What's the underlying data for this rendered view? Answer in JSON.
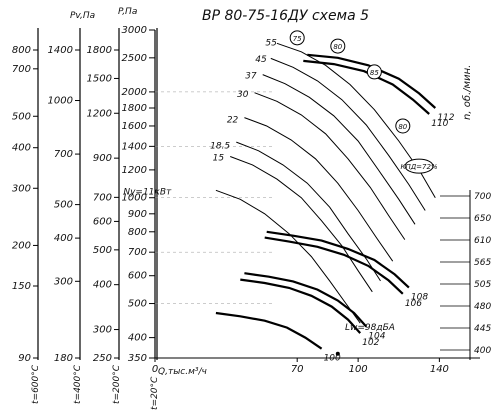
{
  "chart_data": {
    "type": "line",
    "title": "ВР 80-75-16ДУ   схема 5",
    "ylabel_right": "n, об./мин.",
    "xlabel": "Q,тыс.м³/ч",
    "x_ticks": [
      0,
      70,
      100,
      140
    ],
    "xlim": [
      0,
      160
    ],
    "p_axis": {
      "label": "P,Па",
      "scale": "log",
      "range": [
        350,
        3000
      ],
      "ticks": [
        350,
        400,
        500,
        600,
        700,
        800,
        900,
        1000,
        1200,
        1400,
        1600,
        1800,
        2000,
        2500,
        3000
      ]
    },
    "temperature_axes": [
      {
        "label": "t=600°C",
        "ticks": [
          90,
          150,
          200,
          300,
          400,
          500,
          700,
          800
        ]
      },
      {
        "label": "t=400°C",
        "ticks": [
          180,
          300,
          400,
          500,
          700,
          1000,
          1400
        ]
      },
      {
        "label": "t=200°C",
        "ticks": [
          250,
          300,
          400,
          500,
          600,
          700,
          900,
          1200,
          1500,
          1800
        ]
      },
      {
        "label": "t=20°C",
        "ticks": []
      }
    ],
    "pv_axis": {
      "label": "Pv,Па"
    },
    "right_n_ticks": [
      400,
      445,
      480,
      505,
      565,
      610,
      650,
      700
    ],
    "rpm_curves": [
      {
        "rpm": 112,
        "q": [
          75,
          90,
          105,
          120,
          130,
          138
        ],
        "p": [
          2550,
          2500,
          2380,
          2180,
          1980,
          1800
        ]
      },
      {
        "rpm": 110,
        "q": [
          73,
          88,
          103,
          117,
          127,
          135
        ],
        "p": [
          2450,
          2400,
          2290,
          2100,
          1900,
          1730
        ]
      },
      {
        "rpm": 108,
        "q": [
          55,
          68,
          82,
          95,
          108,
          118,
          125
        ],
        "p": [
          800,
          780,
          755,
          715,
          665,
          605,
          555
        ]
      },
      {
        "rpm": 106,
        "q": [
          54,
          66,
          80,
          93,
          105,
          115,
          122
        ],
        "p": [
          770,
          750,
          725,
          688,
          640,
          582,
          533
        ]
      },
      {
        "rpm": 104,
        "q": [
          44,
          56,
          68,
          80,
          90,
          98,
          104
        ],
        "p": [
          610,
          596,
          578,
          548,
          510,
          470,
          430
        ]
      },
      {
        "rpm": 102,
        "q": [
          42,
          54,
          66,
          77,
          87,
          95,
          101
        ],
        "p": [
          585,
          572,
          554,
          526,
          490,
          450,
          412
        ]
      },
      {
        "rpm": 100,
        "q": [
          30,
          42,
          54,
          65,
          74,
          82
        ],
        "p": [
          470,
          460,
          447,
          427,
          400,
          372
        ]
      }
    ],
    "power_labels": [
      {
        "label": "55",
        "q": 60,
        "p": 2760
      },
      {
        "label": "45",
        "q": 55,
        "p": 2480
      },
      {
        "label": "37",
        "q": 50,
        "p": 2230
      },
      {
        "label": "30",
        "q": 46,
        "p": 1970
      },
      {
        "label": "22",
        "q": 41,
        "p": 1670
      },
      {
        "label": "18.5",
        "q": 37,
        "p": 1410
      },
      {
        "label": "15",
        "q": 34,
        "p": 1300
      },
      {
        "label": "Ny=11кВт",
        "q": 8,
        "p": 1040
      }
    ],
    "power_curves": [
      {
        "kw": 55,
        "q": [
          60,
          72,
          84,
          96,
          108,
          120,
          130,
          138
        ],
        "p": [
          2750,
          2600,
          2380,
          2100,
          1780,
          1450,
          1200,
          1000
        ]
      },
      {
        "kw": 45,
        "q": [
          57,
          68,
          80,
          92,
          104,
          115,
          125,
          133
        ],
        "p": [
          2490,
          2350,
          2150,
          1900,
          1610,
          1320,
          1090,
          920
        ]
      },
      {
        "kw": 37,
        "q": [
          53,
          64,
          76,
          88,
          100,
          110,
          120,
          128
        ],
        "p": [
          2240,
          2110,
          1930,
          1710,
          1450,
          1200,
          990,
          840
        ]
      },
      {
        "kw": 30,
        "q": [
          49,
          60,
          72,
          84,
          95,
          106,
          115,
          123
        ],
        "p": [
          1990,
          1880,
          1720,
          1520,
          1290,
          1070,
          890,
          760
        ]
      },
      {
        "kw": 22,
        "q": [
          44,
          55,
          67,
          79,
          90,
          100,
          109,
          117
        ],
        "p": [
          1690,
          1600,
          1460,
          1290,
          1100,
          920,
          770,
          660
        ]
      },
      {
        "kw": 18.5,
        "q": [
          40,
          51,
          63,
          75,
          86,
          95,
          104,
          111
        ],
        "p": [
          1440,
          1360,
          1240,
          1100,
          940,
          790,
          670,
          580
        ]
      },
      {
        "kw": 15,
        "q": [
          37,
          48,
          60,
          72,
          82,
          92,
          100,
          107
        ],
        "p": [
          1310,
          1240,
          1130,
          1000,
          860,
          730,
          620,
          540
        ]
      },
      {
        "kw": 11,
        "q": [
          30,
          42,
          54,
          66,
          77,
          86,
          94,
          101
        ],
        "p": [
          1050,
          990,
          900,
          790,
          680,
          580,
          500,
          440
        ]
      }
    ],
    "efficiency_labels": [
      {
        "label": "75",
        "q": 70,
        "p": 2850
      },
      {
        "label": "80",
        "q": 90,
        "p": 2700
      },
      {
        "label": "85",
        "q": 108,
        "p": 2280
      },
      {
        "label": "80",
        "q": 122,
        "p": 1600
      },
      {
        "label": "КПД=72%",
        "q": 130,
        "p": 1230
      }
    ],
    "annotation": "Lw=98дБА",
    "annotation_pos": {
      "q": 90,
      "p": 360
    }
  }
}
